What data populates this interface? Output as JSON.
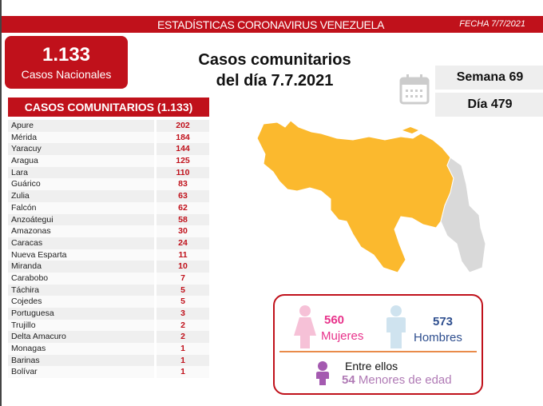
{
  "header": {
    "title": "ESTADÍSTICAS CORONAVIRUS VENEZUELA",
    "date": "FECHA 7/7/2021"
  },
  "national": {
    "total": "1.133",
    "label": "Casos Nacionales"
  },
  "main_title": {
    "line1": "Casos comunitarios",
    "line2": "del día 7.7.2021"
  },
  "calendar": {
    "icon": "calendar-icon",
    "week": "Semana 69",
    "day": "Día 479"
  },
  "table": {
    "header": "CASOS COMUNITARIOS (1.133)",
    "rows": [
      {
        "state": "Apure",
        "cases": "202"
      },
      {
        "state": "Mérida",
        "cases": "184"
      },
      {
        "state": "Yaracuy",
        "cases": "144"
      },
      {
        "state": "Aragua",
        "cases": "125"
      },
      {
        "state": "Lara",
        "cases": "110"
      },
      {
        "state": "Guárico",
        "cases": "83"
      },
      {
        "state": "Zulia",
        "cases": "63"
      },
      {
        "state": "Falcón",
        "cases": "62"
      },
      {
        "state": "Anzoátegui",
        "cases": "58"
      },
      {
        "state": "Amazonas",
        "cases": "30"
      },
      {
        "state": "Caracas",
        "cases": "24"
      },
      {
        "state": "Nueva Esparta",
        "cases": "11"
      },
      {
        "state": "Miranda",
        "cases": "10"
      },
      {
        "state": "Carabobo",
        "cases": "7"
      },
      {
        "state": "Táchira",
        "cases": "5"
      },
      {
        "state": "Cojedes",
        "cases": "5"
      },
      {
        "state": "Portuguesa",
        "cases": "3"
      },
      {
        "state": "Trujillo",
        "cases": "2"
      },
      {
        "state": "Delta Amacuro",
        "cases": "2"
      },
      {
        "state": "Monagas",
        "cases": "1"
      },
      {
        "state": "Barinas",
        "cases": "1"
      },
      {
        "state": "Bolívar",
        "cases": "1"
      }
    ]
  },
  "map": {
    "fill": "#fbb92e",
    "disputed_fill": "#d9d9d9"
  },
  "gender": {
    "women_count": "560",
    "women_label": "Mujeres",
    "men_count": "573",
    "men_label": "Hombres",
    "minors_intro": "Entre ellos",
    "minors_count": "54",
    "minors_label": "Menores de edad",
    "colors": {
      "women": "#e8338b",
      "men": "#2f4f8f",
      "minors": "#a45ab0"
    }
  }
}
